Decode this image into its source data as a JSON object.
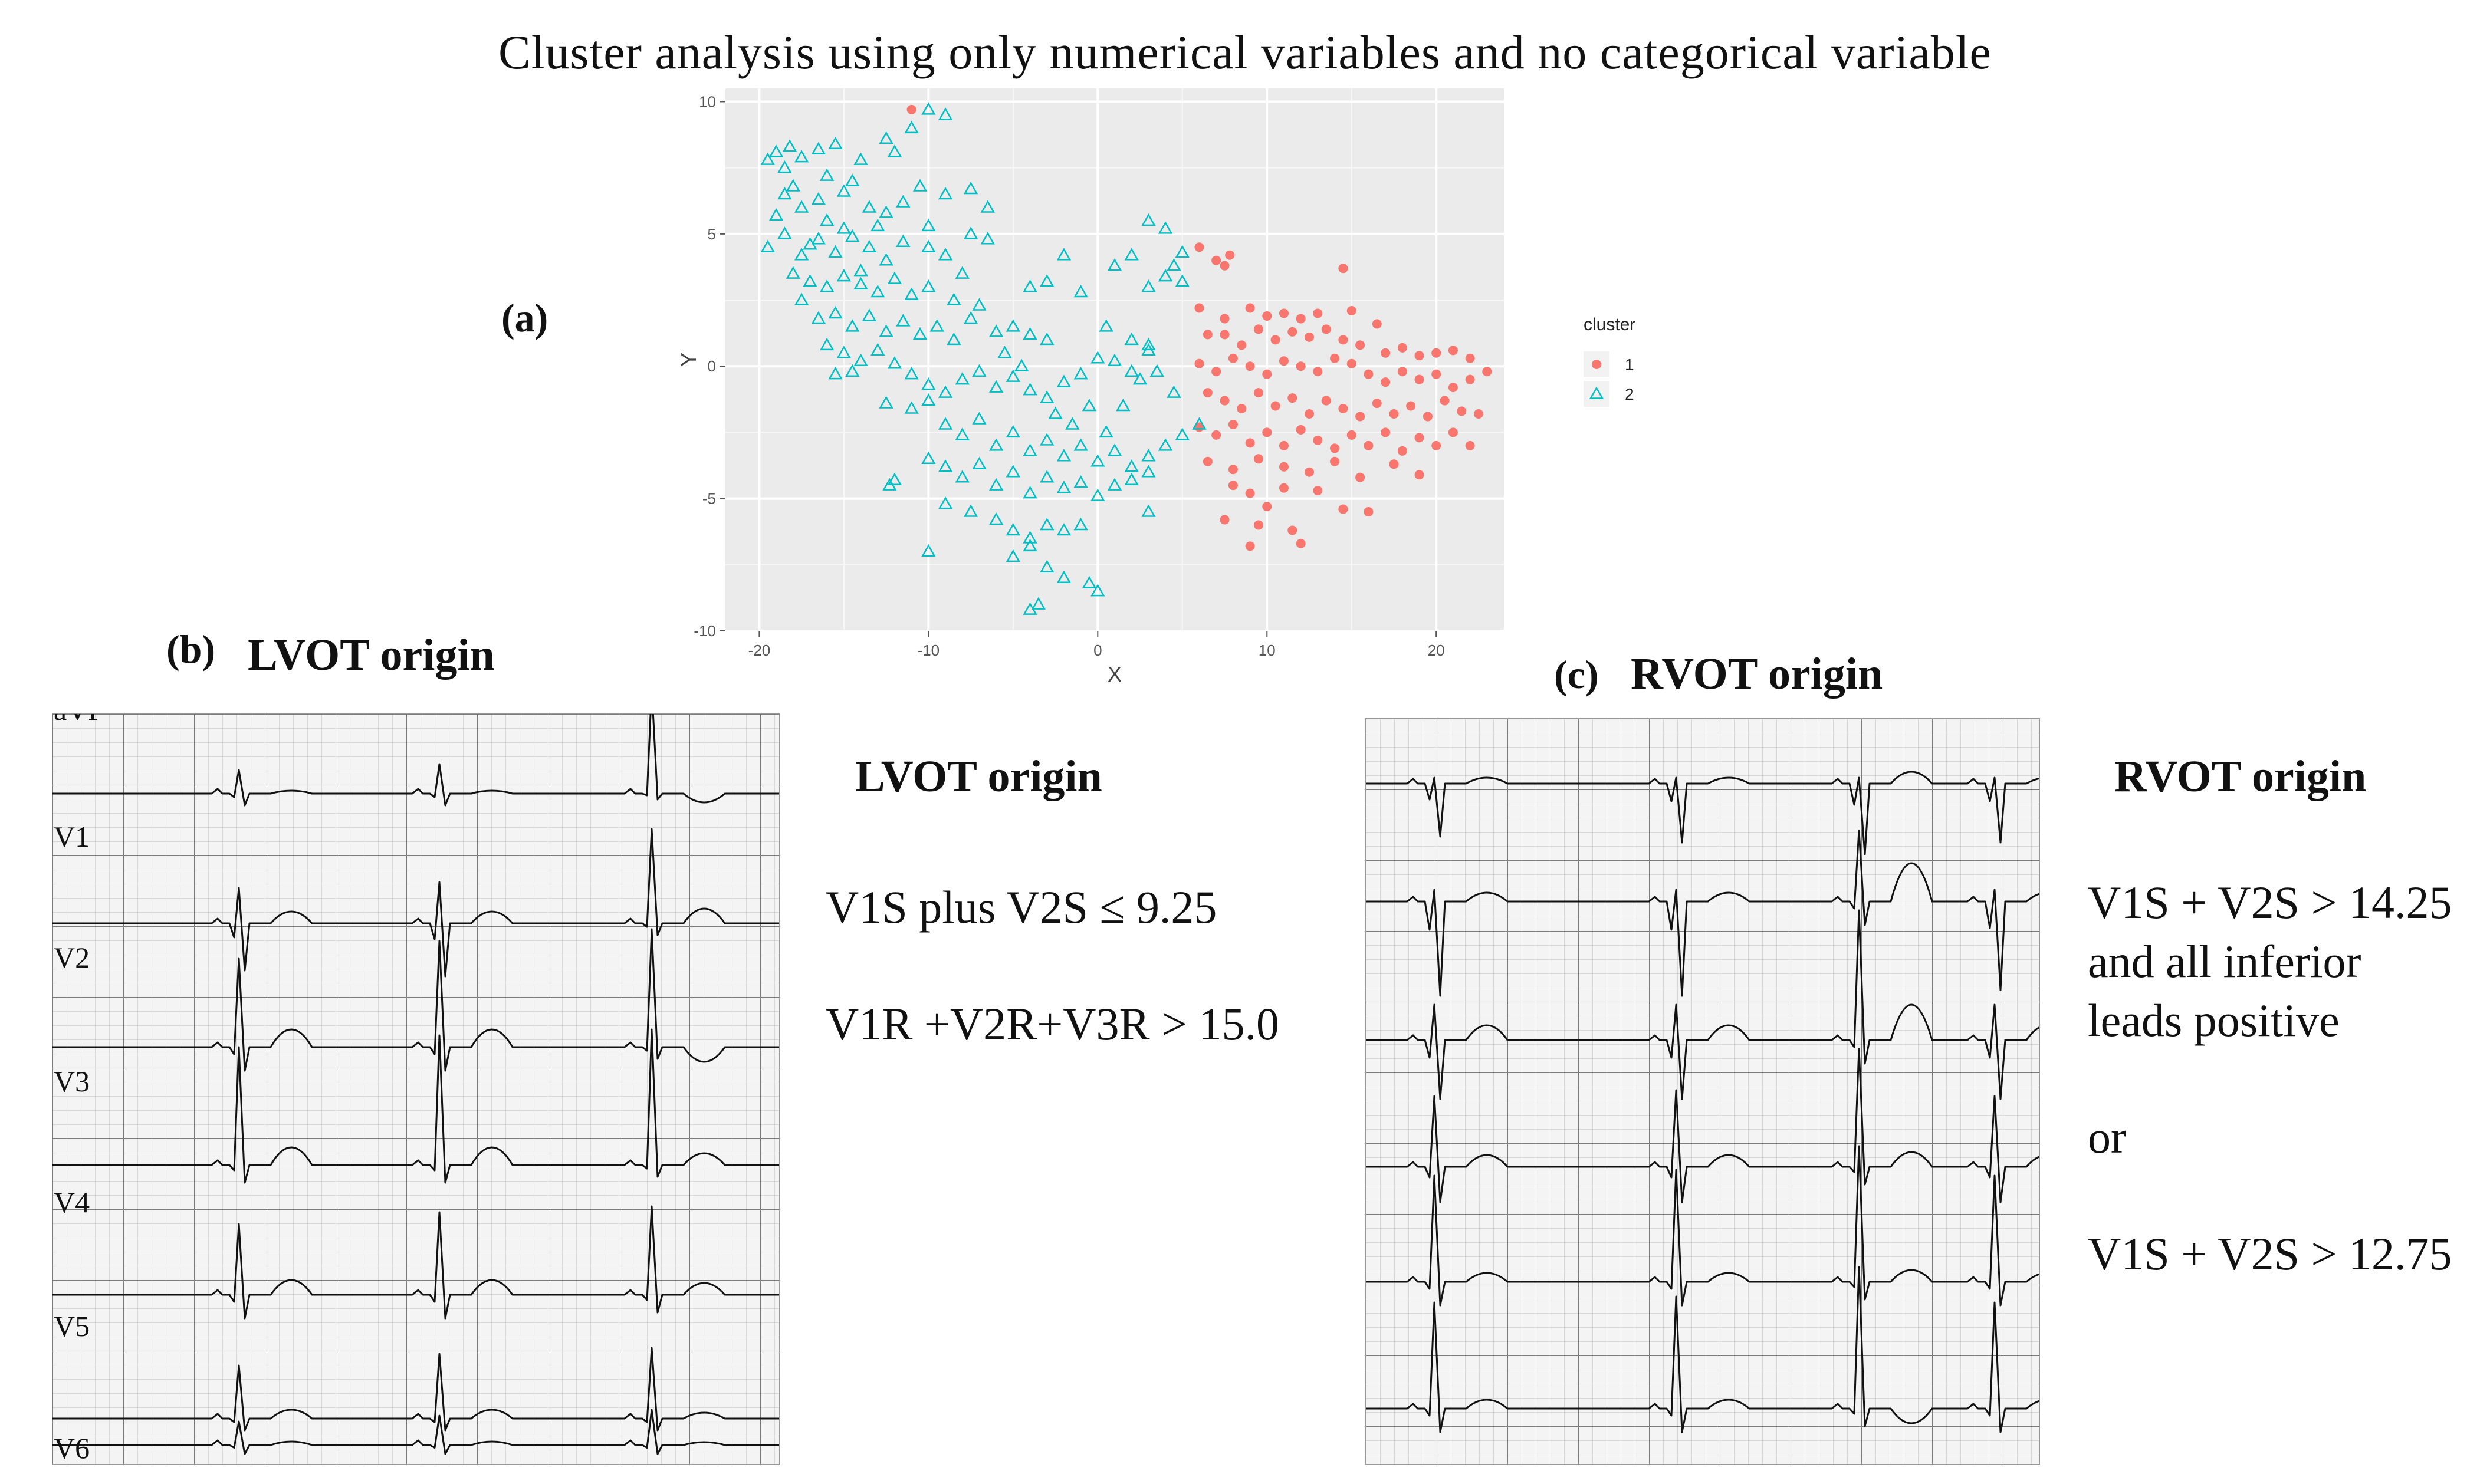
{
  "figure_title": "Cluster analysis using only numerical variables and no categorical variable",
  "panel_a": {
    "label": "(a)"
  },
  "panel_b": {
    "label": "(b)",
    "title": "LVOT origin",
    "leads": [
      "aVF",
      "V1",
      "V2",
      "V3",
      "V4",
      "V5",
      "V6"
    ]
  },
  "panel_c": {
    "label": "(c)",
    "title": "RVOT origin"
  },
  "lvot_criteria": {
    "heading": "LVOT origin",
    "line1": "V1S plus V2S  ≤ 9.25",
    "line2": "V1R +V2R+V3R  > 15.0"
  },
  "rvot_criteria": {
    "heading": "RVOT origin",
    "line1": "V1S + V2S > 14.25",
    "line2": "and all inferior",
    "line3": "leads positive",
    "or": "or",
    "line4": "V1S + V2S > 12.75"
  },
  "chart_data": {
    "type": "scatter",
    "title": "",
    "xlabel": "X",
    "ylabel": "Y",
    "xlim": [
      -22,
      24
    ],
    "ylim": [
      -10,
      10.5
    ],
    "xticks": [
      -20,
      -10,
      0,
      10,
      20
    ],
    "yticks": [
      -10,
      -5,
      0,
      5,
      10
    ],
    "legend": {
      "title": "cluster",
      "placement": "right"
    },
    "grid": true,
    "colors": {
      "1": "#f8766d",
      "2": "#00bfc4",
      "panel_bg": "#ebebeb"
    },
    "series": [
      {
        "name": "1",
        "marker": "circle",
        "points": [
          [
            -11,
            9.7
          ],
          [
            6,
            4.5
          ],
          [
            7,
            4
          ],
          [
            7.5,
            3.8
          ],
          [
            7.8,
            4.2
          ],
          [
            14.5,
            3.7
          ],
          [
            6,
            2.2
          ],
          [
            7.5,
            1.8
          ],
          [
            9,
            2.2
          ],
          [
            10,
            1.9
          ],
          [
            11,
            2.0
          ],
          [
            12,
            1.8
          ],
          [
            13,
            2.0
          ],
          [
            15,
            2.1
          ],
          [
            16.5,
            1.6
          ],
          [
            6.5,
            1.2
          ],
          [
            7.5,
            1.2
          ],
          [
            8.5,
            0.8
          ],
          [
            9.5,
            1.4
          ],
          [
            10.5,
            1.0
          ],
          [
            11.5,
            1.3
          ],
          [
            12.5,
            1.1
          ],
          [
            13.5,
            1.4
          ],
          [
            14.5,
            1.0
          ],
          [
            15.5,
            0.8
          ],
          [
            17,
            0.5
          ],
          [
            18,
            0.7
          ],
          [
            19,
            0.4
          ],
          [
            20,
            0.5
          ],
          [
            21,
            0.6
          ],
          [
            22,
            0.3
          ],
          [
            6,
            0.1
          ],
          [
            7,
            -0.2
          ],
          [
            8,
            0.3
          ],
          [
            9,
            0.0
          ],
          [
            10,
            -0.3
          ],
          [
            11,
            0.2
          ],
          [
            12,
            0.0
          ],
          [
            13,
            -0.2
          ],
          [
            14,
            0.3
          ],
          [
            15,
            0.1
          ],
          [
            16,
            -0.3
          ],
          [
            17,
            -0.6
          ],
          [
            18,
            -0.2
          ],
          [
            19,
            -0.5
          ],
          [
            20,
            -0.3
          ],
          [
            21,
            -0.8
          ],
          [
            22,
            -0.5
          ],
          [
            23,
            -0.2
          ],
          [
            6.5,
            -1.0
          ],
          [
            7.5,
            -1.3
          ],
          [
            8.5,
            -1.6
          ],
          [
            9.5,
            -1.0
          ],
          [
            10.5,
            -1.5
          ],
          [
            11.5,
            -1.2
          ],
          [
            12.5,
            -1.8
          ],
          [
            13.5,
            -1.3
          ],
          [
            14.5,
            -1.6
          ],
          [
            15.5,
            -1.9
          ],
          [
            16.5,
            -1.4
          ],
          [
            17.5,
            -1.8
          ],
          [
            18.5,
            -1.5
          ],
          [
            19.5,
            -1.9
          ],
          [
            20.5,
            -1.3
          ],
          [
            21.5,
            -1.7
          ],
          [
            22.5,
            -1.8
          ],
          [
            6,
            -2.3
          ],
          [
            7,
            -2.6
          ],
          [
            8,
            -2.2
          ],
          [
            9,
            -2.9
          ],
          [
            10,
            -2.5
          ],
          [
            11,
            -3.0
          ],
          [
            12,
            -2.4
          ],
          [
            13,
            -2.8
          ],
          [
            14,
            -3.1
          ],
          [
            15,
            -2.6
          ],
          [
            16,
            -3.0
          ],
          [
            17,
            -2.5
          ],
          [
            18,
            -3.2
          ],
          [
            19,
            -2.7
          ],
          [
            20,
            -3.0
          ],
          [
            21,
            -2.5
          ],
          [
            22,
            -3.0
          ],
          [
            6.5,
            -3.6
          ],
          [
            8,
            -3.9
          ],
          [
            9.5,
            -3.5
          ],
          [
            11,
            -3.8
          ],
          [
            12.5,
            -4.0
          ],
          [
            14,
            -3.6
          ],
          [
            15.5,
            -4.2
          ],
          [
            17.5,
            -3.7
          ],
          [
            19,
            -4.1
          ],
          [
            8,
            -4.5
          ],
          [
            9,
            -4.8
          ],
          [
            10,
            -5.3
          ],
          [
            11,
            -4.6
          ],
          [
            13,
            -4.7
          ],
          [
            14.5,
            -5.4
          ],
          [
            16,
            -5.5
          ],
          [
            7.5,
            -5.8
          ],
          [
            9.5,
            -6.0
          ],
          [
            11.5,
            -6.2
          ],
          [
            9,
            -6.8
          ],
          [
            12,
            -6.7
          ]
        ]
      },
      {
        "name": "2",
        "marker": "triangle",
        "points": [
          [
            -19.5,
            7.8
          ],
          [
            -19,
            8.1
          ],
          [
            -18.2,
            8.3
          ],
          [
            -17.5,
            7.9
          ],
          [
            -16.5,
            8.2
          ],
          [
            -15.5,
            8.4
          ],
          [
            -14,
            7.8
          ],
          [
            -12.5,
            8.6
          ],
          [
            -12,
            8.1
          ],
          [
            -11,
            9.0
          ],
          [
            -10,
            9.7
          ],
          [
            -9,
            9.5
          ],
          [
            -18.5,
            6.5
          ],
          [
            -17.5,
            6.0
          ],
          [
            -16.5,
            6.3
          ],
          [
            -15,
            6.6
          ],
          [
            -13.5,
            6.0
          ],
          [
            -12.5,
            5.8
          ],
          [
            -10.5,
            6.8
          ],
          [
            -9,
            6.5
          ],
          [
            -7.5,
            6.7
          ],
          [
            -6.5,
            6.0
          ],
          [
            -19.5,
            4.5
          ],
          [
            -18.5,
            5.0
          ],
          [
            -17.5,
            4.2
          ],
          [
            -16.5,
            4.8
          ],
          [
            -15.5,
            4.3
          ],
          [
            -14.5,
            4.9
          ],
          [
            -13.5,
            4.5
          ],
          [
            -12.5,
            4.0
          ],
          [
            -11.5,
            4.7
          ],
          [
            -10,
            4.5
          ],
          [
            -9,
            4.2
          ],
          [
            -7.5,
            5.0
          ],
          [
            -6.5,
            4.8
          ],
          [
            -18,
            3.5
          ],
          [
            -17,
            3.2
          ],
          [
            -16,
            3.0
          ],
          [
            -15,
            3.4
          ],
          [
            -14,
            3.1
          ],
          [
            -13,
            2.8
          ],
          [
            -12,
            3.3
          ],
          [
            -11,
            2.7
          ],
          [
            -10,
            3.0
          ],
          [
            -8.5,
            2.5
          ],
          [
            -17.5,
            2.5
          ],
          [
            -16.5,
            1.8
          ],
          [
            -15.5,
            2.0
          ],
          [
            -14.5,
            1.5
          ],
          [
            -13.5,
            1.9
          ],
          [
            -12.5,
            1.3
          ],
          [
            -11.5,
            1.7
          ],
          [
            -10.5,
            1.2
          ],
          [
            -9.5,
            1.5
          ],
          [
            -8.5,
            1.0
          ],
          [
            -7.5,
            1.8
          ],
          [
            -6,
            1.3
          ],
          [
            -5,
            1.5
          ],
          [
            -4,
            1.2
          ],
          [
            -3,
            1.0
          ],
          [
            -16,
            0.8
          ],
          [
            -15,
            0.5
          ],
          [
            -14,
            0.2
          ],
          [
            -13,
            0.6
          ],
          [
            -12,
            0.1
          ],
          [
            -11,
            -0.3
          ],
          [
            -10,
            -0.7
          ],
          [
            -9,
            -1.0
          ],
          [
            -8,
            -0.5
          ],
          [
            -7,
            -0.2
          ],
          [
            -6,
            -0.8
          ],
          [
            -5,
            -0.4
          ],
          [
            -4,
            -0.9
          ],
          [
            -3,
            -1.2
          ],
          [
            -2,
            -0.6
          ],
          [
            -1,
            -0.3
          ],
          [
            0,
            0.3
          ],
          [
            1,
            0.2
          ],
          [
            2,
            -0.2
          ],
          [
            3,
            0.6
          ],
          [
            -15.5,
            -0.3
          ],
          [
            -14.5,
            -0.2
          ],
          [
            -12.5,
            -1.4
          ],
          [
            -11,
            -1.6
          ],
          [
            -10,
            -1.3
          ],
          [
            -9,
            -2.2
          ],
          [
            -8,
            -2.6
          ],
          [
            -7,
            -2.0
          ],
          [
            -6,
            -3.0
          ],
          [
            -5,
            -2.5
          ],
          [
            -4,
            -3.2
          ],
          [
            -3,
            -2.8
          ],
          [
            -2,
            -3.4
          ],
          [
            -1,
            -3.0
          ],
          [
            0,
            -3.6
          ],
          [
            1,
            -3.2
          ],
          [
            2,
            -3.8
          ],
          [
            3,
            -3.4
          ],
          [
            4,
            -3.0
          ],
          [
            5,
            -2.6
          ],
          [
            6,
            -2.2
          ],
          [
            -10,
            -3.5
          ],
          [
            -9,
            -3.8
          ],
          [
            -8,
            -4.2
          ],
          [
            -7,
            -3.7
          ],
          [
            -6,
            -4.5
          ],
          [
            -5,
            -4.0
          ],
          [
            -4,
            -4.8
          ],
          [
            -3,
            -4.2
          ],
          [
            -2,
            -4.6
          ],
          [
            -1,
            -4.4
          ],
          [
            0,
            -4.9
          ],
          [
            1,
            -4.5
          ],
          [
            2,
            -4.3
          ],
          [
            3,
            -4.0
          ],
          [
            -12,
            -4.3
          ],
          [
            -12.3,
            -4.5
          ],
          [
            -9,
            -5.2
          ],
          [
            -7.5,
            -5.5
          ],
          [
            -6,
            -5.8
          ],
          [
            -5,
            -6.2
          ],
          [
            -4,
            -6.5
          ],
          [
            -3,
            -6.0
          ],
          [
            -2,
            -6.2
          ],
          [
            -1,
            -6.0
          ],
          [
            3,
            -5.5
          ],
          [
            -10,
            -7.0
          ],
          [
            -5,
            -7.2
          ],
          [
            -4,
            -6.8
          ],
          [
            -3,
            -7.6
          ],
          [
            -2,
            -8.0
          ],
          [
            -0.5,
            -8.2
          ],
          [
            0,
            -8.5
          ],
          [
            -4,
            -9.2
          ],
          [
            -3.5,
            -9.0
          ],
          [
            3,
            5.5
          ],
          [
            4,
            5.2
          ],
          [
            2,
            4.2
          ],
          [
            1,
            3.8
          ],
          [
            3,
            3.0
          ],
          [
            4,
            3.4
          ],
          [
            5,
            3.2
          ],
          [
            4.5,
            3.8
          ],
          [
            5,
            4.3
          ],
          [
            -2,
            4.2
          ],
          [
            -4,
            3.0
          ],
          [
            -3,
            3.2
          ],
          [
            -1,
            2.8
          ],
          [
            0.5,
            1.5
          ],
          [
            2,
            1.0
          ],
          [
            3,
            0.8
          ],
          [
            2.5,
            -0.5
          ],
          [
            3.5,
            -0.2
          ],
          [
            4.5,
            -1.0
          ],
          [
            -16,
            5.5
          ],
          [
            -15,
            5.2
          ],
          [
            -13,
            5.3
          ],
          [
            -17,
            4.6
          ],
          [
            -14,
            3.6
          ],
          [
            -19,
            5.7
          ],
          [
            -18,
            6.8
          ],
          [
            -18.5,
            7.5
          ],
          [
            -16,
            7.2
          ],
          [
            -14.5,
            7.0
          ],
          [
            -11.5,
            6.2
          ],
          [
            -10,
            5.3
          ],
          [
            -8,
            3.5
          ],
          [
            -7,
            2.3
          ],
          [
            -5.5,
            0.5
          ],
          [
            -4.5,
            0.0
          ],
          [
            -2.5,
            -1.8
          ],
          [
            -1.5,
            -2.2
          ],
          [
            -0.5,
            -1.5
          ],
          [
            0.5,
            -2.5
          ],
          [
            1.5,
            -1.5
          ]
        ]
      }
    ]
  }
}
